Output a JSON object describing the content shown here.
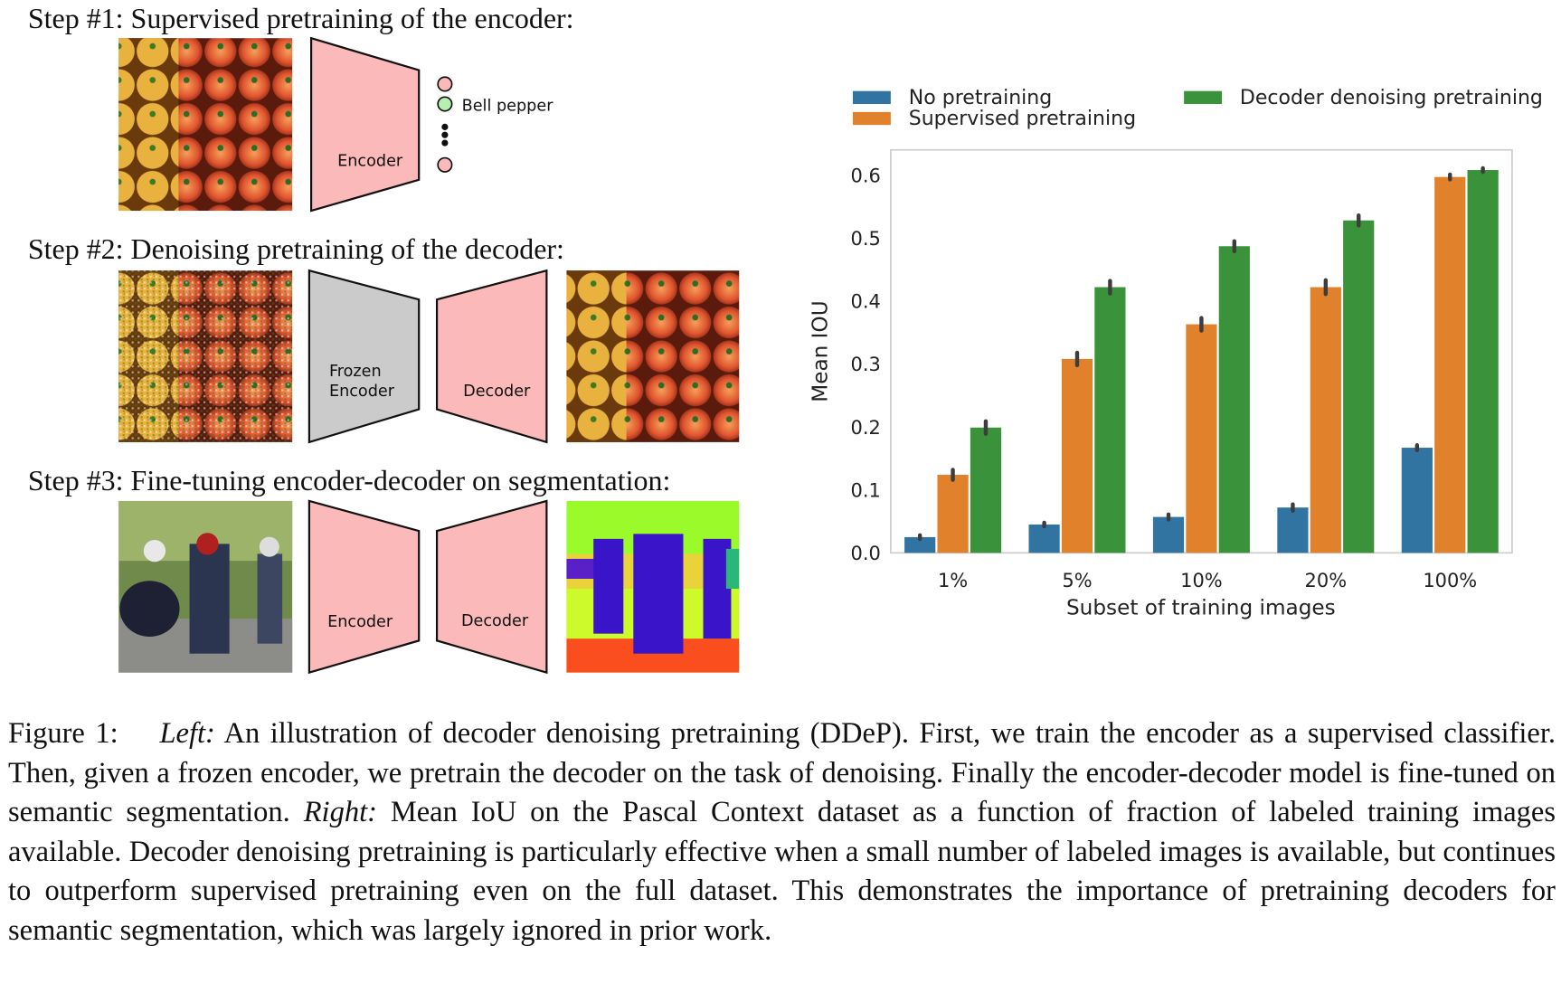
{
  "diagram": {
    "steps": [
      {
        "title": "Step #1: Supervised pretraining of the encoder:",
        "blocks": [
          [
            "Encoder"
          ]
        ],
        "output_label": "Bell pepper"
      },
      {
        "title": "Step #2: Denoising pretraining of the decoder:",
        "blocks": [
          [
            "Frozen",
            "Encoder"
          ],
          [
            "Decoder"
          ]
        ]
      },
      {
        "title": "Step #3: Fine-tuning encoder-decoder on segmentation:",
        "blocks": [
          [
            "Encoder"
          ],
          [
            "Decoder"
          ]
        ]
      }
    ]
  },
  "chart_data": {
    "type": "bar",
    "categories": [
      "1%",
      "5%",
      "10%",
      "20%",
      "100%"
    ],
    "series": [
      {
        "name": "No pretraining",
        "color": "#3274a1",
        "values": [
          0.025,
          0.045,
          0.057,
          0.072,
          0.167
        ],
        "errors": [
          0.003,
          0.003,
          0.004,
          0.005,
          0.004
        ]
      },
      {
        "name": "Supervised pretraining",
        "color": "#e1812c",
        "values": [
          0.124,
          0.308,
          0.363,
          0.422,
          0.597
        ],
        "errors": [
          0.008,
          0.01,
          0.01,
          0.011,
          0.004
        ]
      },
      {
        "name": "Decoder denoising pretraining",
        "color": "#3a923a",
        "values": [
          0.199,
          0.422,
          0.487,
          0.528,
          0.608
        ],
        "errors": [
          0.01,
          0.01,
          0.008,
          0.008,
          0.003
        ]
      }
    ],
    "xlabel": "Subset of training images",
    "ylabel": "Mean IOU",
    "ylim": [
      0,
      0.64
    ],
    "yticks": [
      {
        "value": 0,
        "label": "0.0"
      },
      0.1,
      0.2,
      0.3,
      0.4,
      0.5,
      0.6
    ],
    "grid": false
  },
  "caption": {
    "label": "Figure 1:",
    "left_label": "Left:",
    "left_text": "An illustration of decoder denoising pretraining (DDeP). First, we train the encoder as a supervised classifier. Then, given a frozen encoder, we pretrain the decoder on the task of denoising. Finally the encoder-decoder model is fine-tuned on semantic segmentation.",
    "right_label": "Right:",
    "right_text": "Mean IoU on the Pascal Context dataset as a function of fraction of labeled training images available. Decoder denoising pretraining is particularly effective when a small number of labeled images is available, but continues to outperform supervised pretraining even on the full dataset. This demonstrates the importance of pretraining decoders for semantic segmentation, which was largely ignored in prior work."
  }
}
